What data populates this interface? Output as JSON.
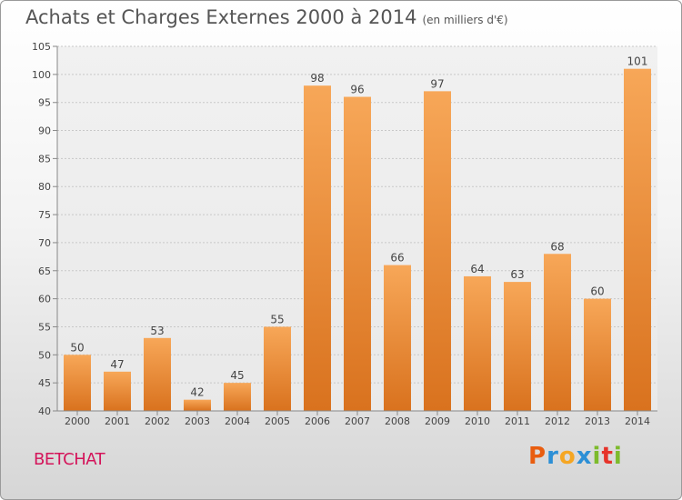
{
  "header": {
    "title": "Achats et Charges Externes 2000 à 2014",
    "subtitle": "(en milliers d'€)"
  },
  "location": "BETCHAT",
  "logo": {
    "letters": [
      "P",
      "r",
      "o",
      "x",
      "i",
      "t",
      "i"
    ],
    "colors": [
      "#e95d0f",
      "#2c8fd6",
      "#f5a623",
      "#2c8fd6",
      "#7dbb2c",
      "#e6332a",
      "#7dbb2c"
    ]
  },
  "chart_data": {
    "type": "bar",
    "title": "Achats et Charges Externes 2000 à 2014",
    "subtitle": "(en milliers d'€)",
    "xlabel": "",
    "ylabel": "",
    "categories": [
      "2000",
      "2001",
      "2002",
      "2003",
      "2004",
      "2005",
      "2006",
      "2007",
      "2008",
      "2009",
      "2010",
      "2011",
      "2012",
      "2013",
      "2014"
    ],
    "values": [
      50,
      47,
      53,
      42,
      45,
      55,
      98,
      96,
      66,
      97,
      64,
      63,
      68,
      60,
      101
    ],
    "value_labels": [
      "50",
      "47",
      "53",
      "42",
      "45",
      "55",
      "98",
      "96",
      "66",
      "97",
      "64",
      "63",
      "68",
      "60",
      "101"
    ],
    "ylim": [
      40,
      105
    ],
    "yticks": [
      40,
      45,
      50,
      55,
      60,
      65,
      70,
      75,
      80,
      85,
      90,
      95,
      100,
      105
    ],
    "grid": true,
    "bar_color": "#f0903a"
  }
}
